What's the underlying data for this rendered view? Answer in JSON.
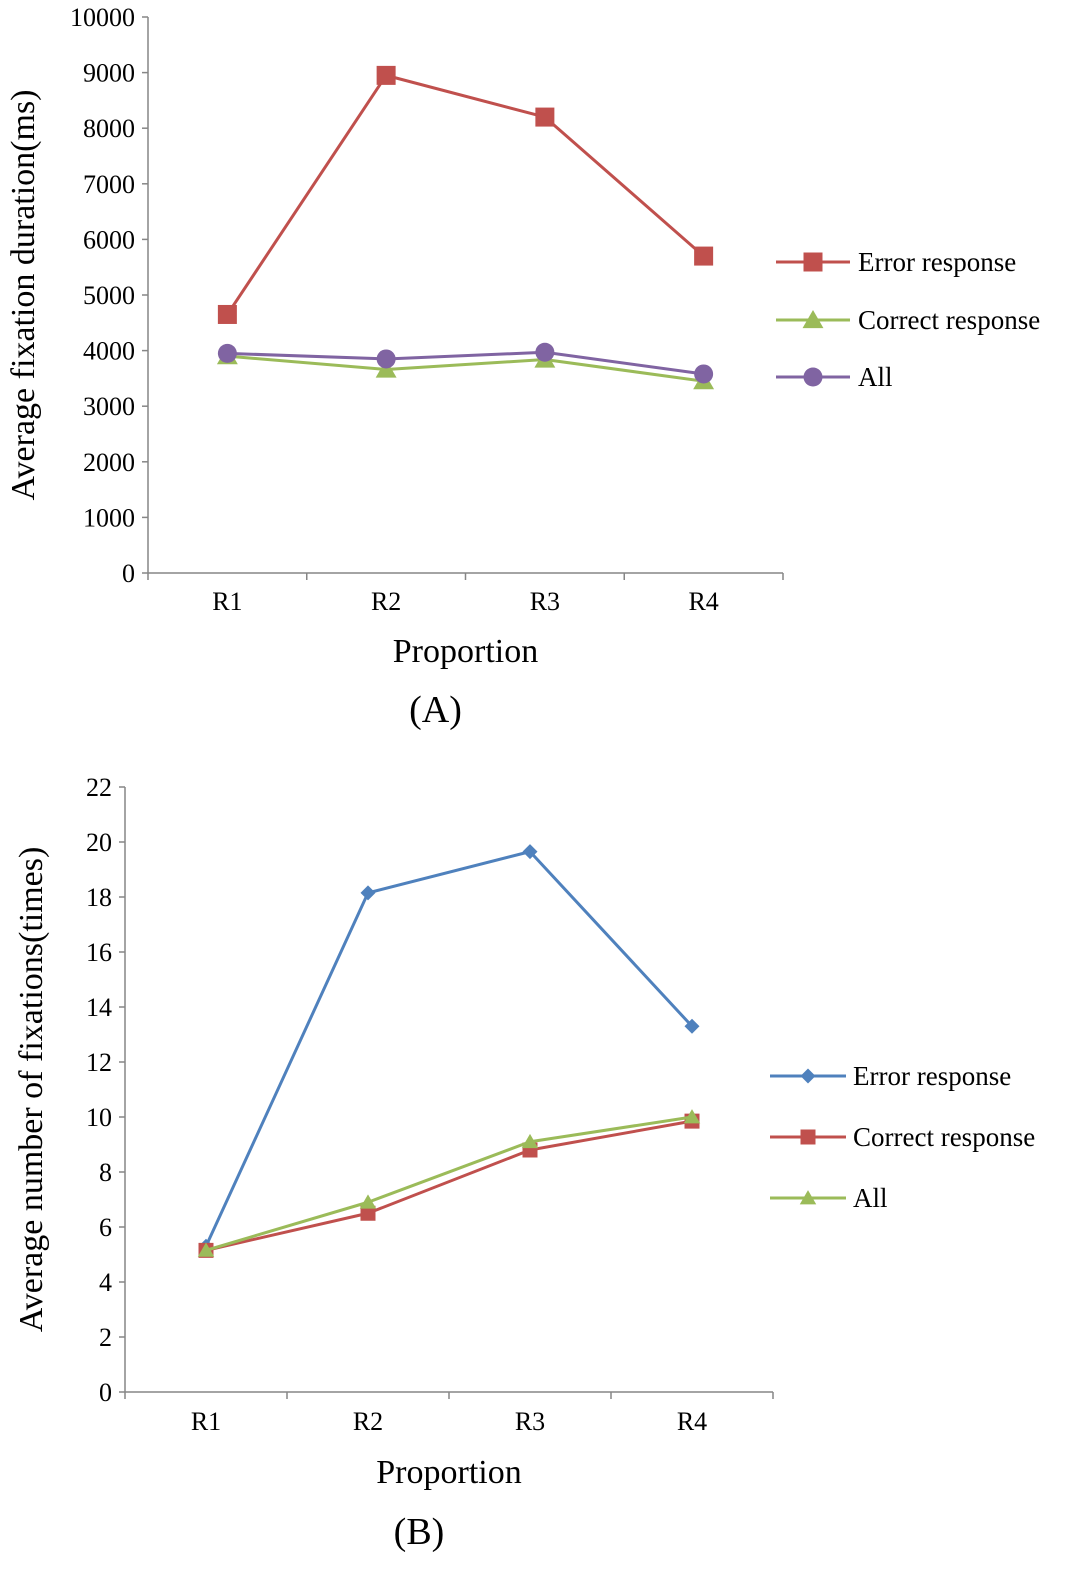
{
  "chart_data": [
    {
      "type": "line",
      "panel_label": "(A)",
      "xlabel": "Proportion",
      "ylabel": "Average fixation duration(ms)",
      "categories": [
        "R1",
        "R2",
        "R3",
        "R4"
      ],
      "ylim": [
        0,
        10000
      ],
      "yticks": [
        0,
        1000,
        2000,
        3000,
        4000,
        5000,
        6000,
        7000,
        8000,
        9000,
        10000
      ],
      "grid": false,
      "legend_position": "right",
      "series": [
        {
          "name": "Error response",
          "values": [
            4650,
            8950,
            8200,
            5700
          ],
          "color": "#c0504d",
          "marker": "square"
        },
        {
          "name": "Correct response",
          "values": [
            3900,
            3660,
            3840,
            3450
          ],
          "color": "#9bbb59",
          "marker": "triangle"
        },
        {
          "name": "All",
          "values": [
            3950,
            3850,
            3970,
            3580
          ],
          "color": "#8064a2",
          "marker": "circle"
        }
      ]
    },
    {
      "type": "line",
      "panel_label": "(B)",
      "xlabel": "Proportion",
      "ylabel": "Average number of fixations(times)",
      "categories": [
        "R1",
        "R2",
        "R3",
        "R4"
      ],
      "ylim": [
        0,
        22
      ],
      "yticks": [
        0,
        2,
        4,
        6,
        8,
        10,
        12,
        14,
        16,
        18,
        20,
        22
      ],
      "grid": false,
      "legend_position": "right",
      "series": [
        {
          "name": "Error response",
          "values": [
            5.3,
            18.15,
            19.65,
            13.3
          ],
          "color": "#4f81bd",
          "marker": "diamond"
        },
        {
          "name": "Correct response",
          "values": [
            5.15,
            6.5,
            8.8,
            9.85
          ],
          "color": "#c0504d",
          "marker": "square"
        },
        {
          "name": "All",
          "values": [
            5.15,
            6.9,
            9.1,
            10.0
          ],
          "color": "#9bbb59",
          "marker": "triangle"
        }
      ]
    }
  ]
}
